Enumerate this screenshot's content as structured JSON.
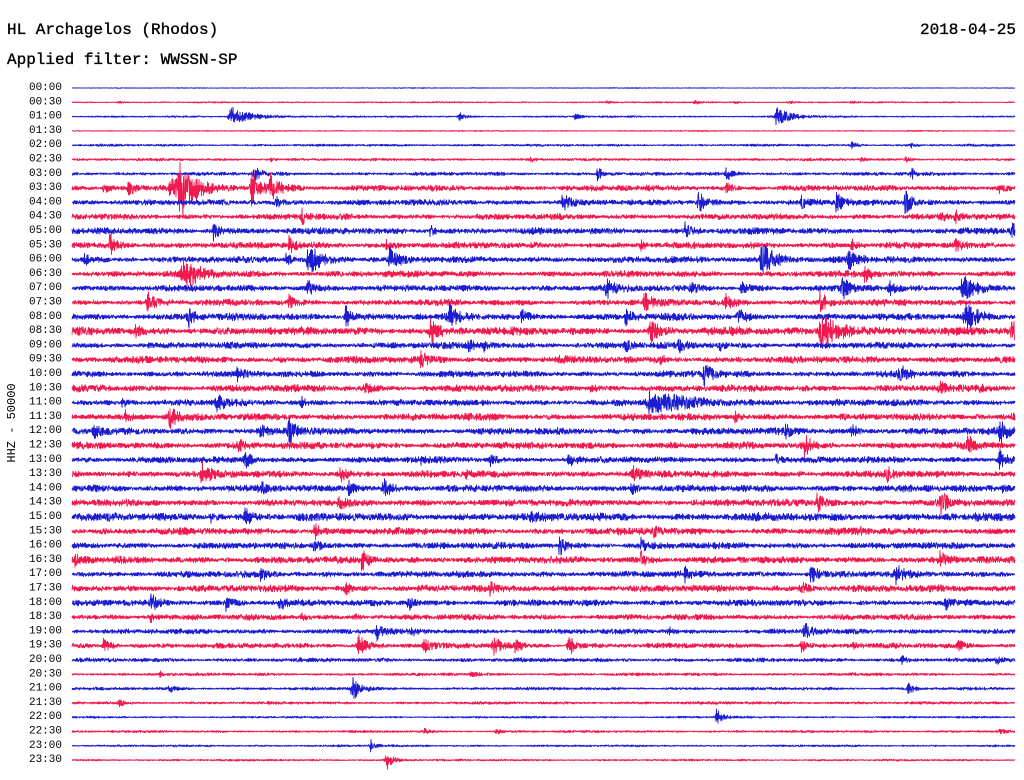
{
  "chart_data": {
    "type": "line",
    "title": "HL Archagelos (Rhodos)",
    "date": "2018-04-25",
    "subtitle": "Applied filter: WWSSN-SP",
    "ylabel": "HHZ - 50000",
    "xlim": [
      0,
      30
    ],
    "colors": [
      "#1c1cd0",
      "#f01a4e"
    ],
    "rows": [
      {
        "label": "00:00",
        "noise": 1500,
        "events": []
      },
      {
        "label": "00:30",
        "noise": 2500,
        "events": [
          [
            1.5,
            5000
          ],
          [
            17.0,
            7000
          ],
          [
            19.8,
            11000
          ],
          [
            21.1,
            5000
          ],
          [
            22.8,
            7000
          ],
          [
            24.8,
            6000
          ]
        ]
      },
      {
        "label": "01:00",
        "noise": 3000,
        "events": [
          [
            5.0,
            38000,
            0.6
          ],
          [
            12.3,
            18000
          ],
          [
            16.0,
            12000
          ],
          [
            22.4,
            35000,
            0.4
          ]
        ]
      },
      {
        "label": "01:30",
        "noise": 2000,
        "events": []
      },
      {
        "label": "02:00",
        "noise": 4000,
        "events": [
          [
            24.8,
            14000
          ],
          [
            26.7,
            8000
          ]
        ]
      },
      {
        "label": "02:30",
        "noise": 4500,
        "events": [
          [
            6.3,
            9000
          ],
          [
            14.6,
            8000
          ],
          [
            25.1,
            9000
          ],
          [
            26.5,
            11000
          ]
        ]
      },
      {
        "label": "03:00",
        "noise": 6000,
        "events": [
          [
            5.8,
            28000
          ],
          [
            16.7,
            28000
          ],
          [
            20.8,
            28000
          ],
          [
            26.7,
            18000
          ]
        ]
      },
      {
        "label": "03:30",
        "noise": 10000,
        "events": [
          [
            1.0,
            21000
          ],
          [
            1.8,
            25000
          ],
          [
            3.1,
            35000,
            0.5
          ],
          [
            3.4,
            120000,
            0.35
          ],
          [
            5.7,
            60000,
            0.3
          ],
          [
            6.3,
            45000,
            0.3
          ],
          [
            20.8,
            18000
          ],
          [
            29.5,
            14000
          ]
        ]
      },
      {
        "label": "04:00",
        "noise": 10000,
        "events": [
          [
            6.5,
            18000
          ],
          [
            15.6,
            35000
          ],
          [
            19.9,
            42000
          ],
          [
            23.2,
            21000
          ],
          [
            24.3,
            35000
          ],
          [
            26.5,
            42000
          ]
        ]
      },
      {
        "label": "04:30",
        "noise": 10000,
        "events": [
          [
            7.3,
            28000
          ],
          [
            27.6,
            18000
          ],
          [
            28.1,
            21000
          ]
        ]
      },
      {
        "label": "05:00",
        "noise": 11000,
        "events": [
          [
            4.5,
            35000
          ],
          [
            11.4,
            21000
          ],
          [
            19.5,
            28000
          ],
          [
            29.9,
            42000
          ]
        ]
      },
      {
        "label": "05:30",
        "noise": 11000,
        "events": [
          [
            1.2,
            35000
          ],
          [
            6.9,
            28000
          ],
          [
            10.0,
            18000
          ],
          [
            18.1,
            14000
          ],
          [
            24.8,
            21000
          ],
          [
            28.1,
            21000
          ]
        ]
      },
      {
        "label": "06:00",
        "noise": 11000,
        "events": [
          [
            0.4,
            21000
          ],
          [
            6.8,
            21000
          ],
          [
            7.5,
            53000,
            0.4
          ],
          [
            10.1,
            42000
          ],
          [
            21.9,
            63000,
            0.4
          ],
          [
            24.7,
            53000
          ]
        ]
      },
      {
        "label": "06:30",
        "noise": 11000,
        "events": [
          [
            3.5,
            53000,
            0.5
          ],
          [
            25.2,
            28000
          ]
        ]
      },
      {
        "label": "07:00",
        "noise": 11000,
        "events": [
          [
            7.5,
            28000
          ],
          [
            17.0,
            35000
          ],
          [
            19.7,
            21000
          ],
          [
            21.3,
            28000
          ],
          [
            24.5,
            35000
          ],
          [
            26.0,
            21000
          ],
          [
            28.3,
            49000,
            0.4
          ]
        ]
      },
      {
        "label": "07:30",
        "noise": 11000,
        "events": [
          [
            2.4,
            35000
          ],
          [
            6.9,
            21000
          ],
          [
            18.2,
            35000
          ],
          [
            20.8,
            28000
          ],
          [
            23.8,
            35000
          ]
        ]
      },
      {
        "label": "08:00",
        "noise": 12000,
        "events": [
          [
            3.7,
            35000
          ],
          [
            8.7,
            42000
          ],
          [
            12.0,
            42000
          ],
          [
            14.3,
            21000
          ],
          [
            17.6,
            28000
          ],
          [
            21.2,
            28000
          ],
          [
            28.4,
            49000,
            0.4
          ]
        ]
      },
      {
        "label": "08:30",
        "noise": 14000,
        "events": [
          [
            2.0,
            21000
          ],
          [
            11.4,
            42000
          ],
          [
            18.4,
            42000
          ],
          [
            23.8,
            63000,
            0.6
          ],
          [
            29.9,
            35000
          ]
        ]
      },
      {
        "label": "09:00",
        "noise": 11000,
        "events": [
          [
            12.6,
            18000
          ],
          [
            13.1,
            18000
          ],
          [
            17.6,
            21000
          ],
          [
            19.3,
            21000
          ],
          [
            20.6,
            18000
          ]
        ]
      },
      {
        "label": "09:30",
        "noise": 12000,
        "events": [
          [
            11.1,
            28000
          ],
          [
            15.5,
            18000
          ],
          [
            18.7,
            18000
          ]
        ]
      },
      {
        "label": "10:00",
        "noise": 11000,
        "events": [
          [
            5.2,
            28000
          ],
          [
            20.1,
            42000
          ],
          [
            26.3,
            35000
          ]
        ]
      },
      {
        "label": "10:30",
        "noise": 12000,
        "events": [
          [
            9.3,
            18000
          ],
          [
            16.5,
            11000
          ],
          [
            27.6,
            18000
          ],
          [
            28.9,
            11000
          ]
        ]
      },
      {
        "label": "11:00",
        "noise": 11000,
        "events": [
          [
            1.6,
            18000
          ],
          [
            4.6,
            35000
          ],
          [
            7.3,
            18000
          ],
          [
            18.3,
            35000,
            1.2
          ]
        ]
      },
      {
        "label": "11:30",
        "noise": 12000,
        "events": [
          [
            1.7,
            21000
          ],
          [
            3.1,
            42000
          ],
          [
            21.1,
            18000
          ],
          [
            29.9,
            11000
          ]
        ]
      },
      {
        "label": "12:00",
        "noise": 12000,
        "events": [
          [
            0.7,
            18000
          ],
          [
            6.0,
            21000
          ],
          [
            6.9,
            42000
          ],
          [
            22.7,
            21000
          ],
          [
            24.8,
            21000
          ],
          [
            29.5,
            42000
          ]
        ]
      },
      {
        "label": "12:30",
        "noise": 12000,
        "events": [
          [
            5.3,
            28000
          ],
          [
            23.3,
            35000
          ],
          [
            28.5,
            35000
          ]
        ]
      },
      {
        "label": "13:00",
        "noise": 11000,
        "events": [
          [
            5.5,
            28000
          ],
          [
            11.1,
            11000
          ],
          [
            13.3,
            21000
          ],
          [
            15.8,
            25000
          ],
          [
            22.4,
            18000
          ],
          [
            29.5,
            35000
          ]
        ]
      },
      {
        "label": "13:30",
        "noise": 12000,
        "events": [
          [
            4.1,
            42000
          ],
          [
            8.5,
            28000
          ],
          [
            12.5,
            14000
          ],
          [
            17.8,
            28000
          ],
          [
            25.9,
            28000
          ]
        ]
      },
      {
        "label": "14:00",
        "noise": 12000,
        "events": [
          [
            6.0,
            21000
          ],
          [
            8.8,
            28000
          ],
          [
            9.9,
            35000
          ],
          [
            17.8,
            18000
          ],
          [
            29.6,
            18000
          ]
        ]
      },
      {
        "label": "14:30",
        "noise": 12000,
        "events": [
          [
            8.5,
            18000
          ],
          [
            23.7,
            35000
          ],
          [
            27.6,
            42000
          ]
        ]
      },
      {
        "label": "15:00",
        "noise": 14000,
        "events": [
          [
            4.4,
            18000
          ],
          [
            5.5,
            28000
          ],
          [
            7.3,
            14000
          ],
          [
            14.6,
            18000
          ]
        ]
      },
      {
        "label": "15:30",
        "noise": 12000,
        "events": [
          [
            7.7,
            28000
          ],
          [
            18.5,
            18000
          ],
          [
            25.1,
            11000
          ]
        ]
      },
      {
        "label": "16:00",
        "noise": 11000,
        "events": [
          [
            7.7,
            28000
          ],
          [
            15.5,
            35000
          ],
          [
            18.1,
            21000
          ]
        ]
      },
      {
        "label": "16:30",
        "noise": 12000,
        "events": [
          [
            0.1,
            21000
          ],
          [
            9.2,
            35000
          ],
          [
            18.1,
            28000
          ],
          [
            27.6,
            28000
          ]
        ]
      },
      {
        "label": "17:00",
        "noise": 11000,
        "events": [
          [
            6.0,
            21000
          ],
          [
            19.5,
            21000
          ],
          [
            23.5,
            35000
          ],
          [
            26.2,
            35000
          ]
        ]
      },
      {
        "label": "17:30",
        "noise": 12000,
        "events": [
          [
            8.7,
            18000
          ],
          [
            13.3,
            18000
          ],
          [
            23.2,
            28000
          ]
        ]
      },
      {
        "label": "18:00",
        "noise": 11000,
        "events": [
          [
            2.5,
            28000
          ],
          [
            4.9,
            28000
          ],
          [
            6.6,
            28000
          ],
          [
            10.7,
            28000
          ],
          [
            27.8,
            18000
          ]
        ]
      },
      {
        "label": "18:30",
        "noise": 10000,
        "events": [
          [
            2.5,
            18000
          ],
          [
            7.3,
            11000
          ],
          [
            9.0,
            11000
          ]
        ]
      },
      {
        "label": "19:00",
        "noise": 9000,
        "events": [
          [
            9.7,
            28000
          ],
          [
            10.8,
            14000
          ],
          [
            19.0,
            14000
          ],
          [
            23.3,
            35000
          ]
        ]
      },
      {
        "label": "19:30",
        "noise": 9000,
        "events": [
          [
            1.0,
            28000
          ],
          [
            9.1,
            42000
          ],
          [
            11.2,
            28000
          ],
          [
            13.4,
            35000
          ],
          [
            14.1,
            21000
          ],
          [
            15.8,
            35000
          ],
          [
            23.2,
            21000
          ],
          [
            24.8,
            18000
          ],
          [
            28.2,
            18000
          ]
        ]
      },
      {
        "label": "20:00",
        "noise": 7000,
        "events": [
          [
            26.4,
            14000
          ],
          [
            29.4,
            14000
          ]
        ]
      },
      {
        "label": "20:30",
        "noise": 5000,
        "events": [
          [
            2.8,
            11000
          ],
          [
            12.7,
            11000
          ]
        ]
      },
      {
        "label": "21:00",
        "noise": 5000,
        "events": [
          [
            3.1,
            18000
          ],
          [
            8.9,
            49000
          ],
          [
            26.6,
            21000
          ]
        ]
      },
      {
        "label": "21:30",
        "noise": 5000,
        "events": [
          [
            1.5,
            14000
          ]
        ]
      },
      {
        "label": "22:00",
        "noise": 3500,
        "events": [
          [
            20.5,
            28000
          ]
        ]
      },
      {
        "label": "22:30",
        "noise": 4000,
        "events": [
          [
            11.2,
            11000
          ],
          [
            13.5,
            11000
          ],
          [
            29.5,
            11000
          ]
        ]
      },
      {
        "label": "23:00",
        "noise": 3500,
        "events": [
          [
            9.5,
            21000
          ]
        ]
      },
      {
        "label": "23:30",
        "noise": 3500,
        "events": [
          [
            10.0,
            35000
          ]
        ]
      }
    ]
  }
}
